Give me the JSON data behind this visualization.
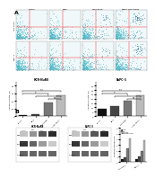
{
  "panel_A_label": "A",
  "panel_B_label": "B",
  "cell_line1": "HCR-NuR8",
  "cell_line2": "BxPC-3",
  "bar1_title": "HCR-NuR8",
  "bar2_title": "BxPC-3",
  "bar_categories": [
    "Control",
    "Bx8R",
    "CDE+Bx8R",
    "Bx8R+CDE+Bx8R"
  ],
  "bar1_values": [
    3,
    5,
    35,
    55
  ],
  "bar2_values": [
    8,
    12,
    18,
    24
  ],
  "bar_colors": [
    "#111111",
    "#444444",
    "#777777",
    "#bbbbbb"
  ],
  "bar1_ylabel": "Apoptosis rate (%)",
  "bar2_ylabel": "Apoptosis rate (%)",
  "wb_labels": [
    "Bax",
    "Bcl-2",
    "b-actin"
  ],
  "wb_cell_line1": "HCR-NuR8",
  "wb_cell_line2": "BxPC-3",
  "wb_bar_categories": [
    "Control",
    "Bx8R",
    "CDE+Bx8R",
    "Bx8R+CDE+Bx8R"
  ],
  "wb_bax_values1": [
    0.5,
    0.8,
    2.5,
    4.2
  ],
  "wb_bax_values2": [
    0.6,
    1.0,
    2.0,
    3.8
  ],
  "wb_bcl2_values1": [
    3.5,
    2.8,
    1.5,
    0.8
  ],
  "wb_bcl2_values2": [
    3.2,
    2.5,
    1.8,
    1.0
  ],
  "background_color": "#ffffff",
  "flow_bg": "#f0f8fa",
  "dot_color_main": "#4ab8c8",
  "dot_color_secondary": "#2a7a90",
  "quadrant_color": "#ff3333",
  "wb_bar_colors": [
    "#111111",
    "#444444",
    "#777777",
    "#bbbbbb"
  ],
  "wb_bar_ylabel": "Relative expression"
}
